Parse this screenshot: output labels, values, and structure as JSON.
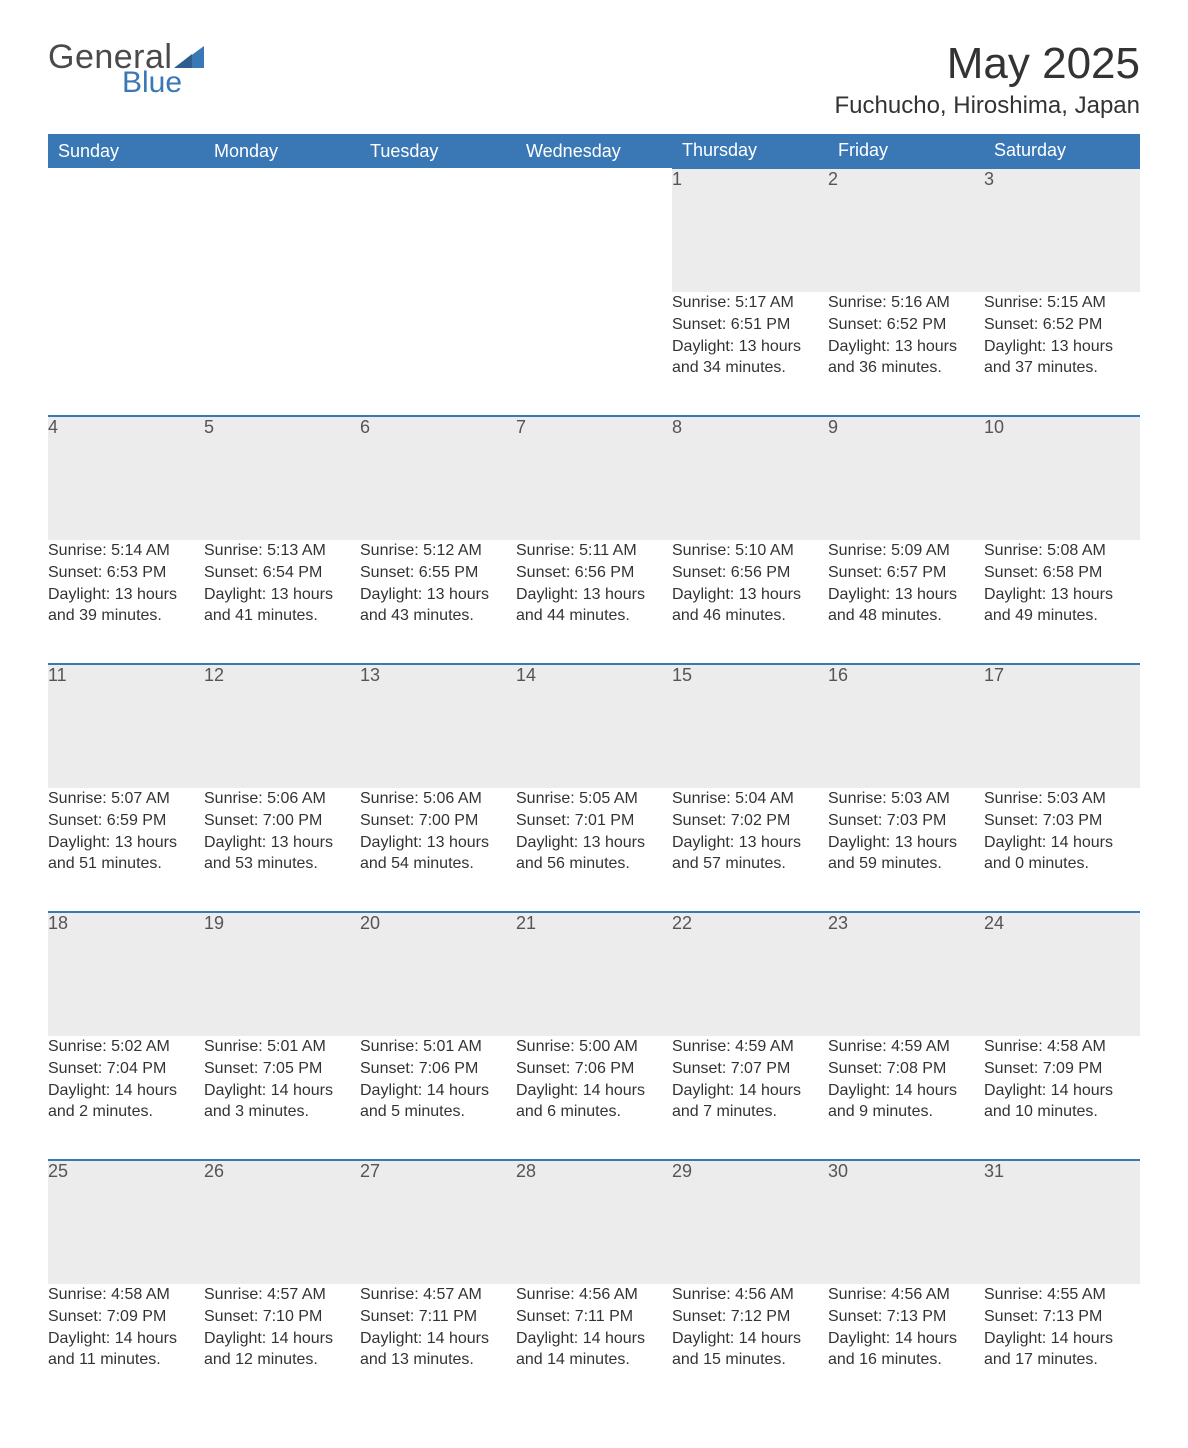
{
  "brand": {
    "word1": "General",
    "word2": "Blue",
    "accent": "#3a78b5",
    "text": "#4a4a4a"
  },
  "title": "May 2025",
  "location": "Fuchucho, Hiroshima, Japan",
  "colors": {
    "header_bg": "#3a78b5",
    "header_fg": "#ffffff",
    "daynum_bg": "#ececec",
    "rule": "#3a78b5",
    "body_fg": "#333333",
    "page_bg": "#ffffff"
  },
  "day_headers": [
    "Sunday",
    "Monday",
    "Tuesday",
    "Wednesday",
    "Thursday",
    "Friday",
    "Saturday"
  ],
  "weeks": [
    [
      null,
      null,
      null,
      null,
      {
        "n": "1",
        "sunrise": "5:17 AM",
        "sunset": "6:51 PM",
        "daylight": "13 hours and 34 minutes."
      },
      {
        "n": "2",
        "sunrise": "5:16 AM",
        "sunset": "6:52 PM",
        "daylight": "13 hours and 36 minutes."
      },
      {
        "n": "3",
        "sunrise": "5:15 AM",
        "sunset": "6:52 PM",
        "daylight": "13 hours and 37 minutes."
      }
    ],
    [
      {
        "n": "4",
        "sunrise": "5:14 AM",
        "sunset": "6:53 PM",
        "daylight": "13 hours and 39 minutes."
      },
      {
        "n": "5",
        "sunrise": "5:13 AM",
        "sunset": "6:54 PM",
        "daylight": "13 hours and 41 minutes."
      },
      {
        "n": "6",
        "sunrise": "5:12 AM",
        "sunset": "6:55 PM",
        "daylight": "13 hours and 43 minutes."
      },
      {
        "n": "7",
        "sunrise": "5:11 AM",
        "sunset": "6:56 PM",
        "daylight": "13 hours and 44 minutes."
      },
      {
        "n": "8",
        "sunrise": "5:10 AM",
        "sunset": "6:56 PM",
        "daylight": "13 hours and 46 minutes."
      },
      {
        "n": "9",
        "sunrise": "5:09 AM",
        "sunset": "6:57 PM",
        "daylight": "13 hours and 48 minutes."
      },
      {
        "n": "10",
        "sunrise": "5:08 AM",
        "sunset": "6:58 PM",
        "daylight": "13 hours and 49 minutes."
      }
    ],
    [
      {
        "n": "11",
        "sunrise": "5:07 AM",
        "sunset": "6:59 PM",
        "daylight": "13 hours and 51 minutes."
      },
      {
        "n": "12",
        "sunrise": "5:06 AM",
        "sunset": "7:00 PM",
        "daylight": "13 hours and 53 minutes."
      },
      {
        "n": "13",
        "sunrise": "5:06 AM",
        "sunset": "7:00 PM",
        "daylight": "13 hours and 54 minutes."
      },
      {
        "n": "14",
        "sunrise": "5:05 AM",
        "sunset": "7:01 PM",
        "daylight": "13 hours and 56 minutes."
      },
      {
        "n": "15",
        "sunrise": "5:04 AM",
        "sunset": "7:02 PM",
        "daylight": "13 hours and 57 minutes."
      },
      {
        "n": "16",
        "sunrise": "5:03 AM",
        "sunset": "7:03 PM",
        "daylight": "13 hours and 59 minutes."
      },
      {
        "n": "17",
        "sunrise": "5:03 AM",
        "sunset": "7:03 PM",
        "daylight": "14 hours and 0 minutes."
      }
    ],
    [
      {
        "n": "18",
        "sunrise": "5:02 AM",
        "sunset": "7:04 PM",
        "daylight": "14 hours and 2 minutes."
      },
      {
        "n": "19",
        "sunrise": "5:01 AM",
        "sunset": "7:05 PM",
        "daylight": "14 hours and 3 minutes."
      },
      {
        "n": "20",
        "sunrise": "5:01 AM",
        "sunset": "7:06 PM",
        "daylight": "14 hours and 5 minutes."
      },
      {
        "n": "21",
        "sunrise": "5:00 AM",
        "sunset": "7:06 PM",
        "daylight": "14 hours and 6 minutes."
      },
      {
        "n": "22",
        "sunrise": "4:59 AM",
        "sunset": "7:07 PM",
        "daylight": "14 hours and 7 minutes."
      },
      {
        "n": "23",
        "sunrise": "4:59 AM",
        "sunset": "7:08 PM",
        "daylight": "14 hours and 9 minutes."
      },
      {
        "n": "24",
        "sunrise": "4:58 AM",
        "sunset": "7:09 PM",
        "daylight": "14 hours and 10 minutes."
      }
    ],
    [
      {
        "n": "25",
        "sunrise": "4:58 AM",
        "sunset": "7:09 PM",
        "daylight": "14 hours and 11 minutes."
      },
      {
        "n": "26",
        "sunrise": "4:57 AM",
        "sunset": "7:10 PM",
        "daylight": "14 hours and 12 minutes."
      },
      {
        "n": "27",
        "sunrise": "4:57 AM",
        "sunset": "7:11 PM",
        "daylight": "14 hours and 13 minutes."
      },
      {
        "n": "28",
        "sunrise": "4:56 AM",
        "sunset": "7:11 PM",
        "daylight": "14 hours and 14 minutes."
      },
      {
        "n": "29",
        "sunrise": "4:56 AM",
        "sunset": "7:12 PM",
        "daylight": "14 hours and 15 minutes."
      },
      {
        "n": "30",
        "sunrise": "4:56 AM",
        "sunset": "7:13 PM",
        "daylight": "14 hours and 16 minutes."
      },
      {
        "n": "31",
        "sunrise": "4:55 AM",
        "sunset": "7:13 PM",
        "daylight": "14 hours and 17 minutes."
      }
    ]
  ],
  "labels": {
    "sunrise": "Sunrise: ",
    "sunset": "Sunset: ",
    "daylight": "Daylight: "
  }
}
